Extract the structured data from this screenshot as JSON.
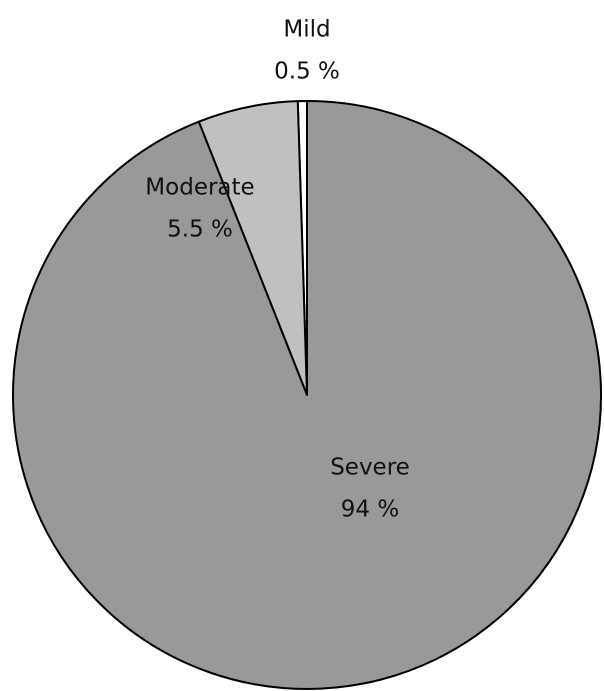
{
  "chart_data": {
    "type": "pie",
    "categories": [
      "Mild",
      "Moderate",
      "Severe"
    ],
    "values": [
      0.5,
      5.5,
      94
    ],
    "value_labels": [
      "0.5 %",
      "5.5 %",
      "94 %"
    ],
    "colors": [
      "#ffffff",
      "#c0c0c0",
      "#999999"
    ]
  }
}
